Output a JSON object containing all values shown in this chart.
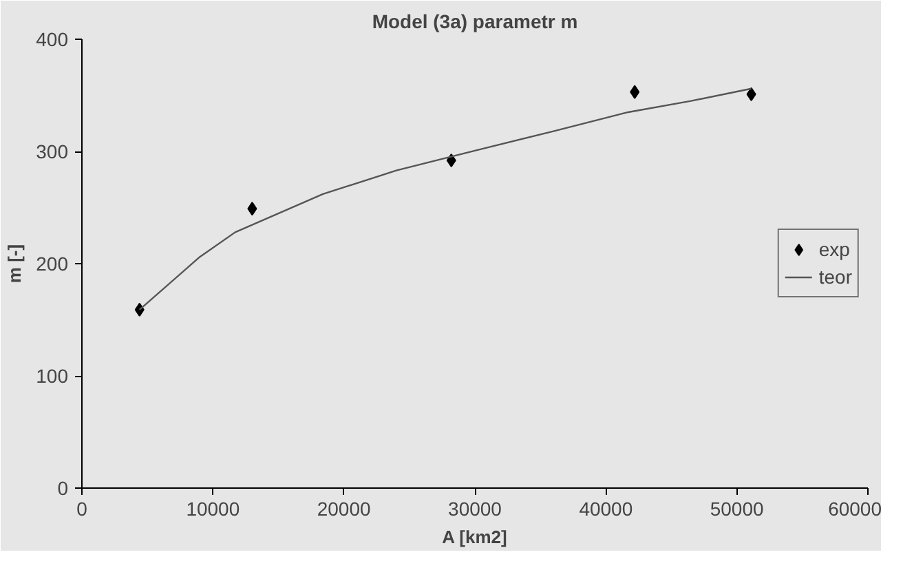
{
  "chart_data": {
    "type": "scatter",
    "title": "Model (3a) parametr m",
    "xlabel": "A [km2]",
    "ylabel": "m [-]",
    "xlim": [
      0,
      60000
    ],
    "xticks": [
      0,
      10000,
      20000,
      30000,
      40000,
      50000,
      60000
    ],
    "ylim": [
      0,
      400
    ],
    "yticks": [
      0,
      100,
      200,
      300,
      400
    ],
    "grid": false,
    "legend": "right",
    "series": [
      {
        "name": "exp",
        "marker": "diamond",
        "color": "#000000",
        "x": [
          4400,
          13000,
          28200,
          42200,
          51100
        ],
        "values": [
          159,
          249,
          292,
          353,
          351
        ]
      },
      {
        "name": "teor",
        "type": "line",
        "color": "#555555",
        "x": [
          4400,
          9000,
          11700,
          18400,
          24000,
          30100,
          36000,
          41700,
          46500,
          51100
        ],
        "values": [
          159,
          206,
          228,
          262,
          283,
          301,
          318,
          335,
          345,
          356
        ]
      }
    ]
  }
}
